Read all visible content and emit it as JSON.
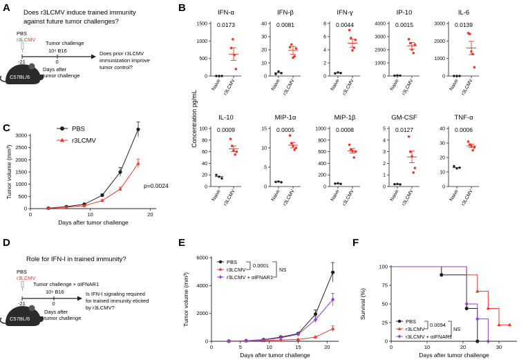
{
  "colors": {
    "black": "#231f20",
    "red": "#e8392b",
    "purple": "#8e44c6",
    "mouse": "#2b2b2b",
    "mouse_light": "#7a7a7a"
  },
  "panels": {
    "A": {
      "letter": "A",
      "question": [
        "Does r3LCMV induce trained immunity",
        "against future tumor challenges?"
      ],
      "pbs": "PBS",
      "r3lcmv": "r3LCMV",
      "challenge": "Tumor challenge",
      "b16": "10⁶ B16",
      "t_start": "-21",
      "t_zero": "0",
      "days_after": [
        "Days after",
        "tumor challenge"
      ],
      "outcome": [
        "Does prior r3LCMV",
        "immunization improve",
        "tumor control?"
      ],
      "mouse_label": "C57BL/6"
    },
    "B": {
      "letter": "B",
      "ylabel": "Concentration pg/mL"
    },
    "C": {
      "letter": "C"
    },
    "D": {
      "letter": "D",
      "question": "Role for IFN-I in trained immunity?",
      "pbs": "PBS",
      "r3lcmv": "r3LCMV",
      "challenge": "Tumor challenge + αIFNAR1",
      "b16": "10⁶ B16",
      "t_start": "-21",
      "t_zero": "0",
      "days_after": [
        "Days after",
        "tumor challenge"
      ],
      "outcome": [
        "Is IFN-I signaling required",
        "for trained immunity elicited",
        "by r3LCMV?"
      ],
      "mouse_label": "C57BL/6"
    },
    "E": {
      "letter": "E"
    },
    "F": {
      "letter": "F"
    }
  },
  "chart_data": [
    {
      "id": "B",
      "type": "scatter",
      "title": "IFN-α",
      "pvalue": "0.0173",
      "categories": [
        "Naive",
        "r3LCMV"
      ],
      "yticks": [
        0,
        500,
        1000,
        1500
      ],
      "ylim": [
        0,
        1500
      ],
      "points": {
        "Naive": [
          0,
          0,
          0
        ],
        "r3LCMV": [
          800,
          1050,
          600,
          200
        ]
      },
      "mean": {
        "Naive": 0,
        "r3LCMV": 625
      },
      "sem": {
        "Naive": 0,
        "r3LCMV": 180
      }
    },
    {
      "id": "B",
      "type": "scatter",
      "title": "IFN-β",
      "pvalue": "0.0081",
      "categories": [
        "Naive",
        "r3LCMV"
      ],
      "yticks": [
        0,
        10,
        20,
        30,
        40
      ],
      "ylim": [
        0,
        40
      ],
      "points": {
        "Naive": [
          1.5,
          3.5,
          2.2
        ],
        "r3LCMV": [
          22,
          24,
          14,
          15,
          21
        ]
      },
      "mean": {
        "Naive": 2.5,
        "r3LCMV": 19.5
      },
      "sem": {
        "Naive": 0.8,
        "r3LCMV": 3
      }
    },
    {
      "id": "B",
      "type": "scatter",
      "title": "IFN-γ",
      "pvalue": "0.0044",
      "categories": [
        "Naive",
        "r3LCMV"
      ],
      "yticks": [
        0,
        2,
        4,
        6,
        8
      ],
      "ylim": [
        0,
        8
      ],
      "points": {
        "Naive": [
          0.4,
          0.55,
          0.45
        ],
        "r3LCMV": [
          7,
          5.8,
          3.9,
          4.3,
          5.5
        ]
      },
      "mean": {
        "Naive": 0.45,
        "r3LCMV": 5
      },
      "sem": {
        "Naive": 0.05,
        "r3LCMV": 0.6
      }
    },
    {
      "id": "B",
      "type": "scatter",
      "title": "IP-10",
      "pvalue": "0.0015",
      "categories": [
        "Naive",
        "r3LCMV"
      ],
      "yticks": [
        0,
        1000,
        2000,
        3000,
        4000
      ],
      "ylim": [
        0,
        4000
      ],
      "points": {
        "Naive": [
          20,
          40,
          30
        ],
        "r3LCMV": [
          2800,
          2500,
          2000,
          1750,
          2400
        ]
      },
      "mean": {
        "Naive": 30,
        "r3LCMV": 2300
      },
      "sem": {
        "Naive": 5,
        "r3LCMV": 250
      }
    },
    {
      "id": "B",
      "type": "scatter",
      "title": "IL-6",
      "pvalue": "0.0139",
      "categories": [
        "Naive",
        "r3LCMV"
      ],
      "yticks": [
        0,
        1000,
        2000,
        3000
      ],
      "ylim": [
        0,
        3000
      ],
      "points": {
        "Naive": [
          0,
          0,
          0
        ],
        "r3LCMV": [
          2450,
          2400,
          1400,
          1250,
          500
        ]
      },
      "mean": {
        "Naive": 0,
        "r3LCMV": 1600
      },
      "sem": {
        "Naive": 0,
        "r3LCMV": 380
      }
    },
    {
      "id": "B",
      "type": "scatter",
      "title": "IL-10",
      "pvalue": "0.0009",
      "categories": [
        "Naive",
        "r3LCMV"
      ],
      "yticks": [
        0,
        20,
        40,
        60,
        80,
        100
      ],
      "ylim": [
        0,
        100
      ],
      "points": {
        "Naive": [
          20,
          17,
          14
        ],
        "r3LCMV": [
          82,
          70,
          62,
          55,
          60
        ]
      },
      "mean": {
        "Naive": 17,
        "r3LCMV": 65
      },
      "sem": {
        "Naive": 2,
        "r3LCMV": 5
      }
    },
    {
      "id": "B",
      "type": "scatter",
      "title": "MIP-1α",
      "pvalue": "0.0005",
      "categories": [
        "Naive",
        "r3LCMV"
      ],
      "yticks": [
        0,
        5,
        10,
        15
      ],
      "ylim": [
        0,
        15
      ],
      "points": {
        "Naive": [
          1.2,
          1.3,
          1.1
        ],
        "r3LCMV": [
          13.2,
          11.2,
          10.5,
          9.5,
          10
        ]
      },
      "mean": {
        "Naive": 1.2,
        "r3LCMV": 10.7
      },
      "sem": {
        "Naive": 0.05,
        "r3LCMV": 0.7
      }
    },
    {
      "id": "B",
      "type": "scatter",
      "title": "MIP-1β",
      "pvalue": "0.0008",
      "categories": [
        "Naive",
        "r3LCMV"
      ],
      "yticks": [
        0,
        200,
        400,
        600,
        800,
        1000
      ],
      "ylim": [
        0,
        1000
      ],
      "points": {
        "Naive": [
          50,
          55,
          45
        ],
        "r3LCMV": [
          720,
          640,
          610,
          500,
          600
        ]
      },
      "mean": {
        "Naive": 50,
        "r3LCMV": 615
      },
      "sem": {
        "Naive": 3,
        "r3LCMV": 40
      }
    },
    {
      "id": "B",
      "type": "scatter",
      "title": "GM-CSF",
      "pvalue": "0.0127",
      "categories": [
        "Naive",
        "r3LCMV"
      ],
      "yticks": [
        0,
        1,
        2,
        3,
        4,
        5
      ],
      "ylim": [
        0,
        5
      ],
      "points": {
        "Naive": [
          0.2,
          0.22,
          0.18
        ],
        "r3LCMV": [
          4.3,
          3,
          2.6,
          1.2,
          1.6
        ]
      },
      "mean": {
        "Naive": 0.2,
        "r3LCMV": 2.55
      },
      "sem": {
        "Naive": 0.02,
        "r3LCMV": 0.5
      }
    },
    {
      "id": "B",
      "type": "scatter",
      "title": "TNF-α",
      "pvalue": "0.0006",
      "categories": [
        "Naive",
        "r3LCMV"
      ],
      "yticks": [
        0,
        10,
        20,
        30,
        40
      ],
      "ylim": [
        0,
        40
      ],
      "points": {
        "Naive": [
          14,
          12.5,
          13
        ],
        "r3LCMV": [
          31,
          29,
          28,
          25,
          27
        ]
      },
      "mean": {
        "Naive": 13,
        "r3LCMV": 28
      },
      "sem": {
        "Naive": 0.5,
        "r3LCMV": 1.2
      }
    },
    {
      "id": "C",
      "type": "line",
      "xlabel": "Days after tumor challenge",
      "ylabel": "Tumor volume (mm³)",
      "xticks": [
        0,
        10,
        20
      ],
      "xlim": [
        0,
        21
      ],
      "yticks": [
        0,
        500,
        1000,
        1500,
        2000,
        2500,
        3000
      ],
      "ylim": [
        0,
        3000
      ],
      "x": [
        3,
        6,
        9,
        12,
        15,
        18
      ],
      "series": [
        {
          "name": "PBS",
          "color": "#231f20",
          "marker": "circle",
          "values": [
            20,
            80,
            180,
            550,
            1500,
            3250
          ],
          "err": [
            10,
            20,
            30,
            60,
            180,
            300
          ]
        },
        {
          "name": "r3LCMV",
          "color": "#e8392b",
          "marker": "triangle",
          "values": [
            15,
            60,
            120,
            330,
            800,
            1850
          ],
          "err": [
            8,
            15,
            20,
            40,
            80,
            180
          ]
        }
      ],
      "annotation": "p=0.0024"
    },
    {
      "id": "E",
      "type": "line",
      "xlabel": "Days after tumor challenge",
      "ylabel": "Tumor volume (mm³)",
      "xticks": [
        0,
        5,
        10,
        15,
        20
      ],
      "xlim": [
        0,
        22
      ],
      "yticks": [
        0,
        2000,
        4000,
        6000
      ],
      "ylim": [
        0,
        6000
      ],
      "x": [
        3,
        6,
        9,
        12,
        15,
        18,
        21
      ],
      "series": [
        {
          "name": "PBS",
          "color": "#231f20",
          "marker": "circle",
          "values": [
            10,
            40,
            120,
            300,
            550,
            1950,
            4950
          ],
          "err": [
            5,
            10,
            25,
            40,
            60,
            300,
            700
          ]
        },
        {
          "name": "r3LCMV",
          "color": "#e8392b",
          "marker": "triangle",
          "values": [
            5,
            20,
            50,
            90,
            130,
            300,
            900
          ],
          "err": [
            3,
            5,
            10,
            15,
            25,
            60,
            200
          ]
        },
        {
          "name": "r3LCMV + αIFNAR1",
          "color": "#8e44c6",
          "marker": "diamond",
          "values": [
            10,
            35,
            100,
            250,
            500,
            1550,
            3000
          ],
          "err": [
            5,
            10,
            20,
            35,
            60,
            200,
            450
          ]
        }
      ],
      "stats": {
        "p1": "0.0001",
        "p2": "NS"
      }
    },
    {
      "id": "F",
      "type": "line",
      "subtype": "survival",
      "xlabel": "Days after tumor challenge",
      "ylabel": "Survival (%)",
      "xticks": [
        0,
        10,
        20,
        30
      ],
      "xlim": [
        0,
        35
      ],
      "yticks": [
        0,
        25,
        50,
        75,
        100
      ],
      "ylim": [
        0,
        100
      ],
      "series": [
        {
          "name": "PBS",
          "color": "#231f20",
          "marker": "circle",
          "steps": [
            [
              0,
              100
            ],
            [
              14,
              100
            ],
            [
              14,
              89
            ],
            [
              21,
              89
            ],
            [
              21,
              44
            ],
            [
              24,
              44
            ],
            [
              24,
              0
            ]
          ],
          "markers": [
            [
              14,
              89
            ],
            [
              21,
              44
            ],
            [
              24,
              0
            ]
          ]
        },
        {
          "name": "r3LCMV",
          "color": "#e8392b",
          "marker": "triangle",
          "steps": [
            [
              0,
              100
            ],
            [
              21,
              100
            ],
            [
              21,
              89
            ],
            [
              24,
              89
            ],
            [
              24,
              67
            ],
            [
              27,
              67
            ],
            [
              27,
              44
            ],
            [
              30,
              44
            ],
            [
              30,
              22
            ],
            [
              33,
              22
            ]
          ],
          "markers": [
            [
              24,
              67
            ],
            [
              27,
              44
            ],
            [
              30,
              22
            ],
            [
              33,
              22
            ]
          ]
        },
        {
          "name": "r3LCMV + αIFNAR1",
          "color": "#8e44c6",
          "marker": "diamond",
          "steps": [
            [
              0,
              100
            ],
            [
              21,
              100
            ],
            [
              21,
              50
            ],
            [
              24,
              50
            ],
            [
              24,
              30
            ],
            [
              27,
              30
            ],
            [
              27,
              0
            ]
          ],
          "markers": [
            [
              21,
              50
            ],
            [
              24,
              30
            ],
            [
              27,
              0
            ]
          ]
        }
      ],
      "stats": {
        "p1": "0.0094",
        "p2": "NS"
      }
    }
  ]
}
